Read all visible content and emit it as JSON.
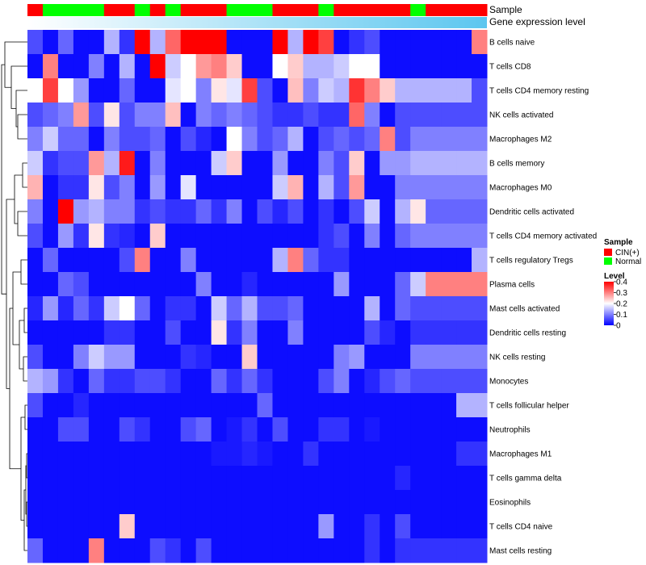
{
  "chart_data": {
    "type": "heatmap",
    "annotation_labels": {
      "sample": "Sample",
      "gene_expression": "Gene expression level"
    },
    "sample_groups": [
      "C",
      "N",
      "N",
      "N",
      "N",
      "C",
      "C",
      "N",
      "C",
      "N",
      "C",
      "C",
      "C",
      "N",
      "N",
      "N",
      "C",
      "C",
      "C",
      "N",
      "C",
      "C",
      "C",
      "C",
      "C",
      "N",
      "C",
      "C",
      "C",
      "C"
    ],
    "rows": [
      "B cells naive",
      "T cells CD8",
      "T cells CD4 memory resting",
      "NK cells activated",
      "Macrophages M2",
      "B cells memory",
      "Macrophages M0",
      "Dendritic cells activated",
      "T cells CD4 memory activated",
      "T cells regulatory  Tregs",
      "Plasma cells",
      "Mast cells activated",
      "Dendritic cells resting",
      "NK cells resting",
      "Monocytes",
      "T cells follicular helper",
      "Neutrophils",
      "Macrophages M1",
      "T cells gamma delta",
      "Eosinophils",
      "T cells CD4 naive",
      "Mast cells resting"
    ],
    "values": [
      [
        0.06,
        0.01,
        0.08,
        0.01,
        0.01,
        0.14,
        0.04,
        0.4,
        0.14,
        0.32,
        0.4,
        0.4,
        0.4,
        0.01,
        0.01,
        0.01,
        0.4,
        0.14,
        0.4,
        0.35,
        0.01,
        0.04,
        0.06,
        0.01,
        0.01,
        0.01,
        0.01,
        0.01,
        0.01,
        0.3
      ],
      [
        0.01,
        0.3,
        0.01,
        0.01,
        0.1,
        0.01,
        0.14,
        0.01,
        0.4,
        0.16,
        0.2,
        0.28,
        0.3,
        0.24,
        0.01,
        0.01,
        0.2,
        0.24,
        0.14,
        0.14,
        0.16,
        0.2,
        0.2,
        0.01,
        0.01,
        0.01,
        0.01,
        0.01,
        0.01,
        0.01
      ],
      [
        0.2,
        0.35,
        0.2,
        0.12,
        0.01,
        0.01,
        0.08,
        0.01,
        0.01,
        0.18,
        0.2,
        0.1,
        0.22,
        0.18,
        0.35,
        0.06,
        0.01,
        0.25,
        0.1,
        0.16,
        0.14,
        0.36,
        0.3,
        0.24,
        0.14,
        0.14,
        0.14,
        0.14,
        0.14,
        0.06
      ],
      [
        0.06,
        0.08,
        0.1,
        0.28,
        0.06,
        0.22,
        0.06,
        0.1,
        0.1,
        0.25,
        0.01,
        0.1,
        0.08,
        0.1,
        0.08,
        0.06,
        0.04,
        0.04,
        0.06,
        0.04,
        0.04,
        0.32,
        0.1,
        0.01,
        0.06,
        0.06,
        0.06,
        0.06,
        0.06,
        0.06
      ],
      [
        0.1,
        0.16,
        0.08,
        0.08,
        0.01,
        0.1,
        0.06,
        0.06,
        0.08,
        0.01,
        0.06,
        0.03,
        0.01,
        0.2,
        0.1,
        0.06,
        0.08,
        0.14,
        0.01,
        0.06,
        0.08,
        0.06,
        0.08,
        0.3,
        0.06,
        0.1,
        0.1,
        0.1,
        0.1,
        0.1
      ],
      [
        0.16,
        0.04,
        0.06,
        0.06,
        0.28,
        0.14,
        0.38,
        0.01,
        0.1,
        0.01,
        0.01,
        0.01,
        0.16,
        0.24,
        0.01,
        0.01,
        0.12,
        0.01,
        0.01,
        0.1,
        0.06,
        0.24,
        0.01,
        0.12,
        0.12,
        0.14,
        0.14,
        0.14,
        0.14,
        0.14
      ],
      [
        0.26,
        0.01,
        0.04,
        0.04,
        0.22,
        0.06,
        0.1,
        0.01,
        0.12,
        0.01,
        0.18,
        0.01,
        0.01,
        0.01,
        0.01,
        0.01,
        0.16,
        0.26,
        0.01,
        0.14,
        0.06,
        0.28,
        0.01,
        0.01,
        0.1,
        0.1,
        0.1,
        0.1,
        0.1,
        0.1
      ],
      [
        0.1,
        0.01,
        0.4,
        0.12,
        0.14,
        0.1,
        0.1,
        0.04,
        0.06,
        0.04,
        0.04,
        0.08,
        0.04,
        0.1,
        0.01,
        0.06,
        0.03,
        0.06,
        0.01,
        0.04,
        0.01,
        0.06,
        0.16,
        0.01,
        0.14,
        0.22,
        0.08,
        0.08,
        0.08,
        0.08
      ],
      [
        0.06,
        0.01,
        0.12,
        0.04,
        0.22,
        0.04,
        0.03,
        0.01,
        0.24,
        0.01,
        0.01,
        0.01,
        0.01,
        0.01,
        0.01,
        0.01,
        0.01,
        0.01,
        0.01,
        0.04,
        0.06,
        0.01,
        0.1,
        0.01,
        0.08,
        0.1,
        0.1,
        0.1,
        0.1,
        0.1
      ],
      [
        0.01,
        0.08,
        0.01,
        0.01,
        0.01,
        0.01,
        0.06,
        0.3,
        0.01,
        0.01,
        0.1,
        0.01,
        0.01,
        0.01,
        0.01,
        0.01,
        0.14,
        0.3,
        0.08,
        0.04,
        0.04,
        0.01,
        0.01,
        0.01,
        0.01,
        0.01,
        0.01,
        0.01,
        0.01,
        0.14
      ],
      [
        0.01,
        0.01,
        0.08,
        0.06,
        0.01,
        0.01,
        0.01,
        0.01,
        0.01,
        0.01,
        0.01,
        0.1,
        0.01,
        0.01,
        0.03,
        0.01,
        0.01,
        0.01,
        0.01,
        0.01,
        0.12,
        0.01,
        0.01,
        0.01,
        0.08,
        0.16,
        0.3,
        0.3,
        0.3,
        0.3
      ],
      [
        0.03,
        0.12,
        0.03,
        0.08,
        0.04,
        0.16,
        0.2,
        0.08,
        0.01,
        0.04,
        0.04,
        0.01,
        0.16,
        0.08,
        0.14,
        0.06,
        0.06,
        0.08,
        0.01,
        0.01,
        0.01,
        0.01,
        0.14,
        0.01,
        0.08,
        0.06,
        0.06,
        0.06,
        0.06,
        0.06
      ],
      [
        0.01,
        0.01,
        0.01,
        0.01,
        0.01,
        0.04,
        0.04,
        0.01,
        0.01,
        0.06,
        0.01,
        0.01,
        0.22,
        0.04,
        0.1,
        0.01,
        0.01,
        0.1,
        0.01,
        0.01,
        0.01,
        0.01,
        0.06,
        0.03,
        0.01,
        0.04,
        0.04,
        0.04,
        0.04,
        0.04
      ],
      [
        0.06,
        0.01,
        0.01,
        0.1,
        0.16,
        0.12,
        0.12,
        0.01,
        0.01,
        0.01,
        0.04,
        0.03,
        0.01,
        0.01,
        0.24,
        0.01,
        0.01,
        0.01,
        0.01,
        0.01,
        0.1,
        0.12,
        0.01,
        0.01,
        0.01,
        0.1,
        0.1,
        0.1,
        0.1,
        0.1
      ],
      [
        0.14,
        0.12,
        0.04,
        0.01,
        0.08,
        0.04,
        0.04,
        0.06,
        0.06,
        0.04,
        0.01,
        0.01,
        0.08,
        0.04,
        0.08,
        0.04,
        0.01,
        0.01,
        0.01,
        0.06,
        0.1,
        0.01,
        0.03,
        0.06,
        0.08,
        0.06,
        0.06,
        0.06,
        0.06,
        0.06
      ],
      [
        0.06,
        0.01,
        0.01,
        0.03,
        0.01,
        0.01,
        0.01,
        0.01,
        0.01,
        0.01,
        0.01,
        0.01,
        0.01,
        0.01,
        0.01,
        0.08,
        0.01,
        0.01,
        0.01,
        0.01,
        0.01,
        0.01,
        0.01,
        0.01,
        0.01,
        0.01,
        0.01,
        0.01,
        0.14,
        0.14
      ],
      [
        0.01,
        0.01,
        0.06,
        0.06,
        0.01,
        0.01,
        0.06,
        0.04,
        0.01,
        0.01,
        0.06,
        0.08,
        0.01,
        0.02,
        0.04,
        0.01,
        0.06,
        0.01,
        0.01,
        0.04,
        0.04,
        0.01,
        0.02,
        0.01,
        0.01,
        0.01,
        0.01,
        0.01,
        0.01,
        0.01
      ],
      [
        0.01,
        0.01,
        0.01,
        0.01,
        0.01,
        0.01,
        0.01,
        0.01,
        0.01,
        0.01,
        0.01,
        0.01,
        0.02,
        0.02,
        0.03,
        0.02,
        0.01,
        0.01,
        0.04,
        0.01,
        0.01,
        0.01,
        0.01,
        0.01,
        0.01,
        0.01,
        0.01,
        0.01,
        0.04,
        0.04
      ],
      [
        0.01,
        0.01,
        0.01,
        0.01,
        0.01,
        0.01,
        0.01,
        0.01,
        0.01,
        0.01,
        0.01,
        0.01,
        0.01,
        0.01,
        0.01,
        0.01,
        0.01,
        0.01,
        0.01,
        0.01,
        0.01,
        0.01,
        0.01,
        0.01,
        0.03,
        0.01,
        0.01,
        0.01,
        0.01,
        0.01
      ],
      [
        0.01,
        0.01,
        0.01,
        0.01,
        0.01,
        0.01,
        0.01,
        0.01,
        0.01,
        0.01,
        0.01,
        0.01,
        0.01,
        0.01,
        0.01,
        0.01,
        0.01,
        0.01,
        0.01,
        0.01,
        0.01,
        0.01,
        0.01,
        0.01,
        0.01,
        0.01,
        0.01,
        0.01,
        0.01,
        0.01
      ],
      [
        0.01,
        0.01,
        0.01,
        0.01,
        0.01,
        0.01,
        0.24,
        0.01,
        0.01,
        0.01,
        0.01,
        0.01,
        0.01,
        0.01,
        0.01,
        0.01,
        0.01,
        0.01,
        0.01,
        0.12,
        0.01,
        0.01,
        0.04,
        0.01,
        0.06,
        0.01,
        0.01,
        0.01,
        0.01,
        0.01
      ],
      [
        0.08,
        0.01,
        0.01,
        0.01,
        0.3,
        0.01,
        0.01,
        0.01,
        0.06,
        0.04,
        0.01,
        0.06,
        0.01,
        0.01,
        0.01,
        0.01,
        0.01,
        0.01,
        0.01,
        0.01,
        0.01,
        0.01,
        0.04,
        0.01,
        0.04,
        0.04,
        0.04,
        0.04,
        0.04,
        0.04
      ]
    ],
    "legend": {
      "sample_title": "Sample",
      "sample_entries": [
        {
          "code": "C",
          "label": "CIN(+)",
          "color": "#ff0000"
        },
        {
          "code": "N",
          "label": "Normal",
          "color": "#00ff00"
        }
      ],
      "level_title": "Level",
      "level_ticks": [
        "0.4",
        "0.3",
        "0.2",
        "0.1",
        "0"
      ],
      "level_range": [
        0,
        0.4
      ]
    },
    "colors": {
      "low": "#0000ff",
      "mid": "#ffffff",
      "high": "#ff0000",
      "gene_bar": "#5bc6ef",
      "gene_bar_fade": "#ffffff",
      "dendrogram": "#000000"
    }
  }
}
